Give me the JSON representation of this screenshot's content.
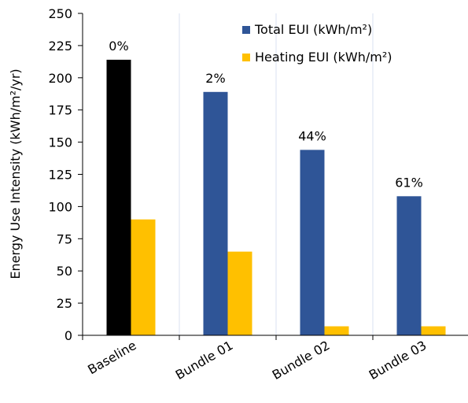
{
  "chart_data": {
    "type": "bar",
    "title": "",
    "xlabel": "",
    "ylabel": "Energy Use Intensity (kWh/m²/yr)",
    "ylim": [
      0,
      250
    ],
    "yticks": [
      0,
      25,
      50,
      75,
      100,
      125,
      150,
      175,
      200,
      225,
      250
    ],
    "grid": "vertical",
    "legend_position": "top-right",
    "categories": [
      "Baseline",
      "Bundle 01",
      "Bundle 02",
      "Bundle 03"
    ],
    "series": [
      {
        "name": "Total EUI (kWh/m²)",
        "values": [
          214,
          189,
          144,
          108
        ],
        "color": "#2f5597",
        "point_colors": [
          "#000000",
          "#2f5597",
          "#2f5597",
          "#2f5597"
        ]
      },
      {
        "name": "Heating EUI (kWh/m²)",
        "values": [
          90,
          65,
          7,
          7
        ],
        "color": "#ffc000"
      }
    ],
    "annotations": [
      "0%",
      "2%",
      "44%",
      "61%"
    ]
  }
}
